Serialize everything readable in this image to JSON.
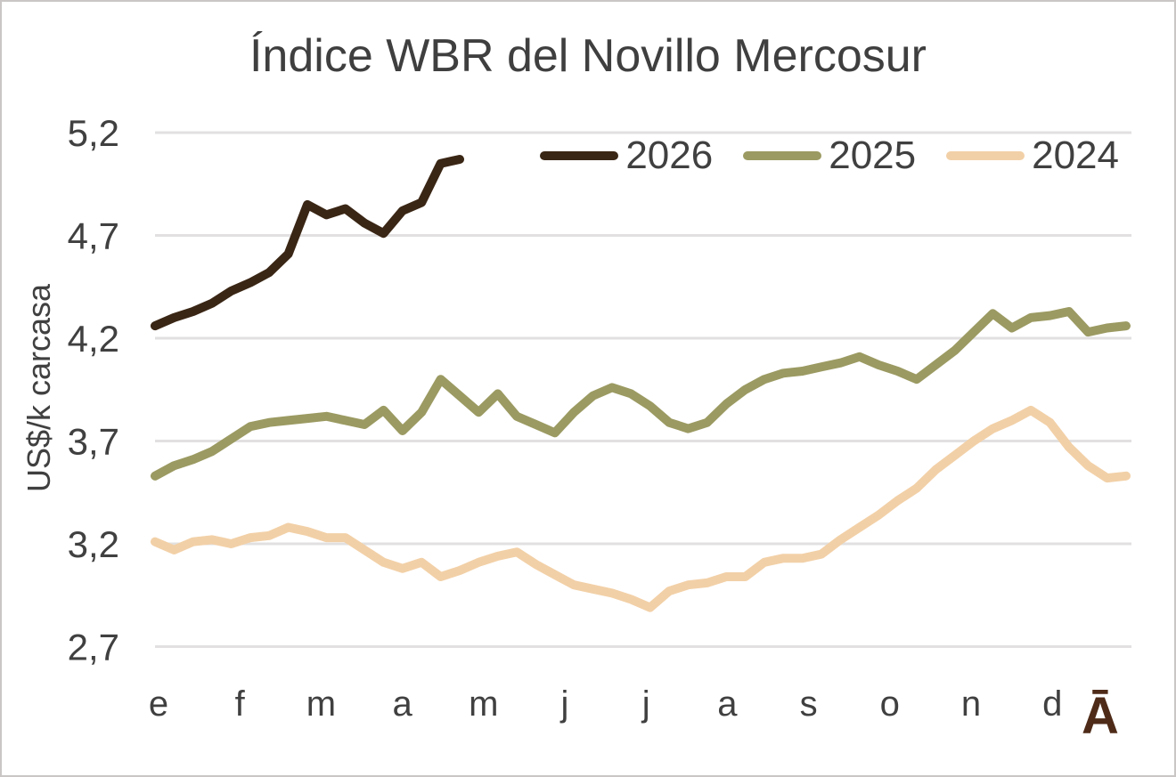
{
  "chart_data": {
    "type": "line",
    "title": "Índice WBR del Novillo Mercosur",
    "xlabel": "",
    "ylabel": "US$/k carcasa",
    "ylim": [
      2.7,
      5.2
    ],
    "grid": "horizontal-only",
    "legend_position": "top-right",
    "points_per_year": 52,
    "x_tick_labels": [
      "e",
      "f",
      "m",
      "a",
      "m",
      "j",
      "j",
      "a",
      "s",
      "o",
      "n",
      "d"
    ],
    "y_ticks": [
      {
        "value": 5.2,
        "label": "5,2"
      },
      {
        "value": 4.7,
        "label": "4,7"
      },
      {
        "value": 4.2,
        "label": "4,2"
      },
      {
        "value": 3.7,
        "label": "3,7"
      },
      {
        "value": 3.2,
        "label": "3,2"
      },
      {
        "value": 2.7,
        "label": "2,7"
      }
    ],
    "series": [
      {
        "name": "2026",
        "color": "#3a2615",
        "values": [
          4.26,
          4.3,
          4.33,
          4.37,
          4.43,
          4.47,
          4.52,
          4.61,
          4.85,
          4.8,
          4.83,
          4.76,
          4.71,
          4.82,
          4.86,
          5.05,
          5.07
        ]
      },
      {
        "name": "2025",
        "color": "#9b9a62",
        "values": [
          3.53,
          3.58,
          3.61,
          3.65,
          3.71,
          3.77,
          3.79,
          3.8,
          3.81,
          3.82,
          3.8,
          3.78,
          3.85,
          3.75,
          3.84,
          4.0,
          3.92,
          3.84,
          3.93,
          3.82,
          3.78,
          3.74,
          3.84,
          3.92,
          3.96,
          3.93,
          3.87,
          3.79,
          3.76,
          3.79,
          3.88,
          3.95,
          4.0,
          4.03,
          4.04,
          4.06,
          4.08,
          4.11,
          4.07,
          4.04,
          4.0,
          4.07,
          4.14,
          4.23,
          4.32,
          4.25,
          4.3,
          4.31,
          4.33,
          4.23,
          4.25,
          4.26
        ]
      },
      {
        "name": "2024",
        "color": "#f2d0a7",
        "values": [
          3.21,
          3.17,
          3.21,
          3.22,
          3.2,
          3.23,
          3.24,
          3.28,
          3.26,
          3.23,
          3.23,
          3.17,
          3.11,
          3.08,
          3.11,
          3.04,
          3.07,
          3.11,
          3.14,
          3.16,
          3.1,
          3.05,
          3.0,
          2.98,
          2.96,
          2.93,
          2.89,
          2.97,
          3.0,
          3.01,
          3.04,
          3.04,
          3.11,
          3.13,
          3.13,
          3.15,
          3.22,
          3.28,
          3.34,
          3.41,
          3.47,
          3.56,
          3.63,
          3.7,
          3.76,
          3.8,
          3.85,
          3.79,
          3.67,
          3.58,
          3.52,
          3.53
        ]
      }
    ]
  },
  "brand": {
    "mark": "Ā",
    "color": "#4e2b18"
  },
  "style": {
    "gridline_color": "#e2e0e0",
    "text_color": "#404040",
    "title_color": "#3f3f3f",
    "border_color": "#c9c6c5",
    "background": "#ffffff"
  }
}
